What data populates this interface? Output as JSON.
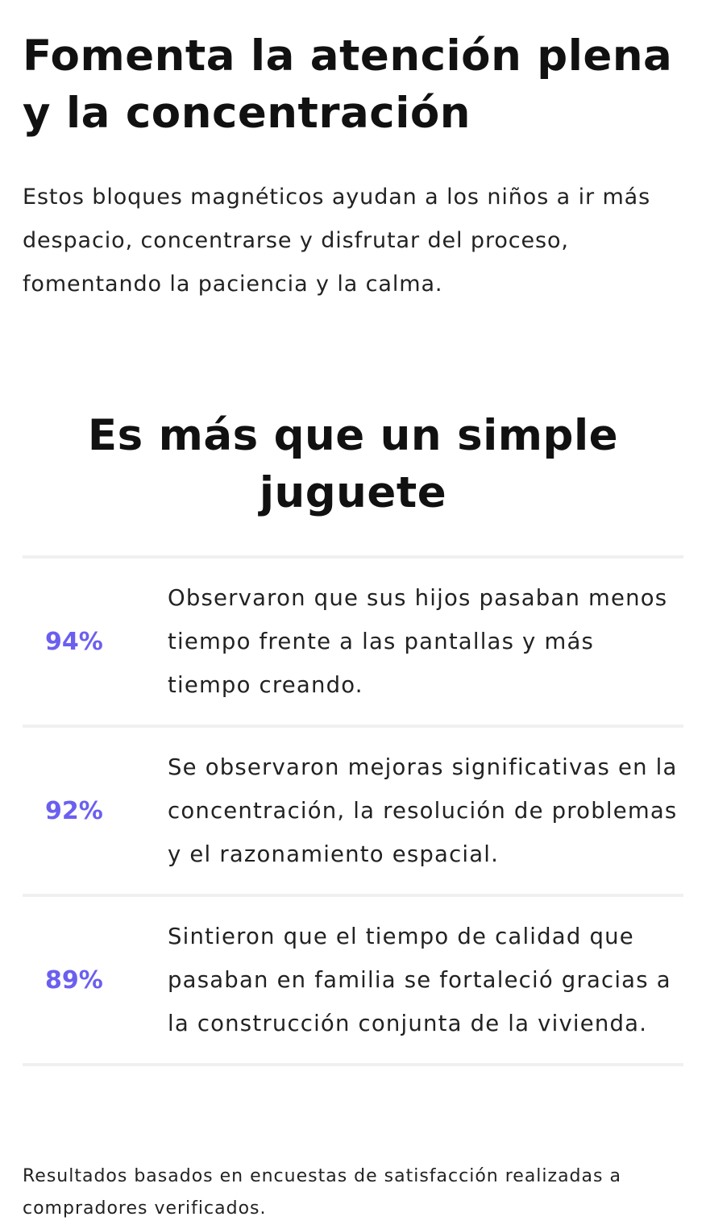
{
  "heading": "Fomenta la atención plena y la concentración",
  "intro": "Estos bloques magnéticos ayudan a los niños a ir más despacio, concentrarse y disfrutar del proceso, fomentando la paciencia y la calma.",
  "section_title": "Es más que un simple juguete",
  "accent_color": "#6b5ff0",
  "stats": [
    {
      "percent": "94%",
      "text": "Observaron que sus hijos pasaban menos tiempo frente a las pantallas y más tiempo creando."
    },
    {
      "percent": "92%",
      "text": "Se observaron mejoras significativas en la concentración, la resolución de problemas y el razonamiento espacial."
    },
    {
      "percent": "89%",
      "text": "Sintieron que el tiempo de calidad que pasaban en familia se fortaleció gracias a la construcción conjunta de la vivienda."
    }
  ],
  "footnote": "Resultados basados en encuestas de satisfacción realizadas a compradores verificados."
}
